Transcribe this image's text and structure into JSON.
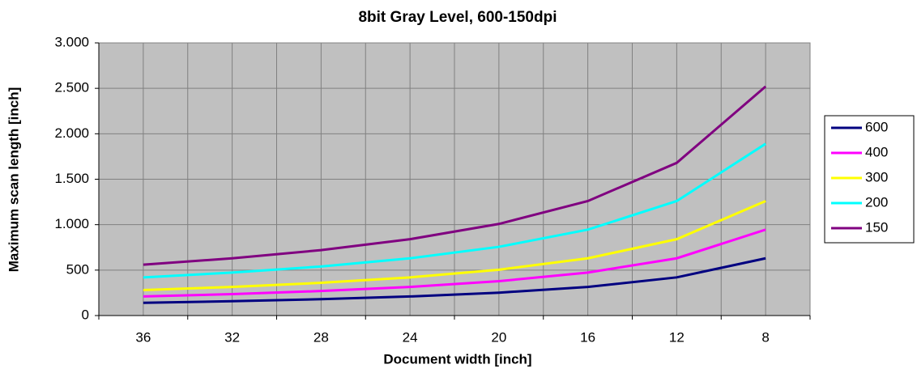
{
  "chart_data": {
    "type": "line",
    "title": "8bit Gray Level, 600-150dpi",
    "x_label": "Document width [inch]",
    "y_label": "Maximum scan length [inch]",
    "categories": [
      36,
      32,
      28,
      24,
      20,
      16,
      12,
      8
    ],
    "series": [
      {
        "name": "600",
        "color": "#000080",
        "values": [
          140,
          158,
          180,
          210,
          252,
          315,
          420,
          630
        ]
      },
      {
        "name": "400",
        "color": "#ff00ff",
        "values": [
          210,
          236,
          270,
          315,
          378,
          473,
          630,
          945
        ]
      },
      {
        "name": "300",
        "color": "#ffff00",
        "values": [
          280,
          315,
          360,
          420,
          504,
          630,
          840,
          1260
        ]
      },
      {
        "name": "200",
        "color": "#00ffff",
        "values": [
          420,
          473,
          540,
          630,
          756,
          945,
          1260,
          1890
        ]
      },
      {
        "name": "150",
        "color": "#800080",
        "values": [
          560,
          630,
          720,
          840,
          1008,
          1260,
          1680,
          2520
        ]
      }
    ],
    "ylim": [
      0,
      3000
    ],
    "yticks": [
      0,
      500,
      {
        "value": 1000,
        "label": "1.000"
      },
      {
        "value": 1500,
        "label": "1.500"
      },
      {
        "value": 2000,
        "label": "2.000"
      },
      {
        "value": 2500,
        "label": "2.500"
      },
      {
        "value": 3000,
        "label": "3.000"
      }
    ],
    "grid": true,
    "legend": "right"
  }
}
